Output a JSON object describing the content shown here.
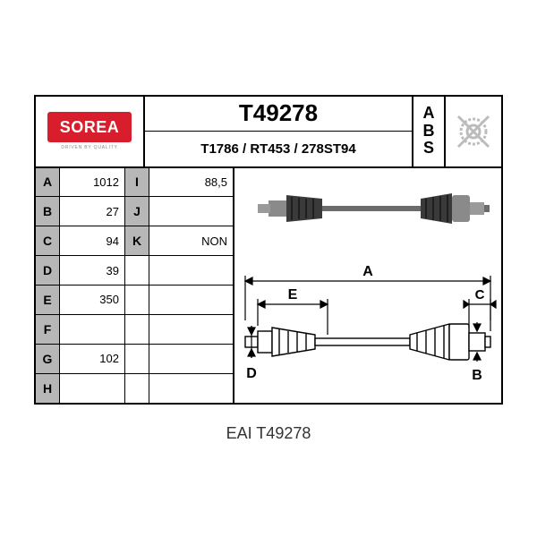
{
  "brand": {
    "name": "SOREA",
    "tagline": "DRIVEN BY QUALITY"
  },
  "part": {
    "number": "T49278",
    "alt_refs": "T1786 / RT453 / 278ST94"
  },
  "abs_label": "ABS",
  "specs": {
    "left": [
      {
        "key": "A",
        "val": "1012"
      },
      {
        "key": "B",
        "val": "27"
      },
      {
        "key": "C",
        "val": "94"
      },
      {
        "key": "D",
        "val": "39"
      },
      {
        "key": "E",
        "val": "350"
      },
      {
        "key": "F",
        "val": ""
      },
      {
        "key": "G",
        "val": "102"
      },
      {
        "key": "H",
        "val": ""
      }
    ],
    "right": [
      {
        "key": "I",
        "val": "88,5"
      },
      {
        "key": "J",
        "val": ""
      },
      {
        "key": "K",
        "val": "NON"
      },
      {
        "key": "",
        "val": ""
      },
      {
        "key": "",
        "val": ""
      },
      {
        "key": "",
        "val": ""
      },
      {
        "key": "",
        "val": ""
      },
      {
        "key": "",
        "val": ""
      }
    ]
  },
  "dim_labels": {
    "A": "A",
    "B": "B",
    "C": "C",
    "D": "D",
    "E": "E"
  },
  "caption": "EAI T49278",
  "colors": {
    "brand_red": "#d81e2c",
    "head_gray": "#b7b7b7",
    "line": "#000000",
    "diagram_gray": "#9a9a9a",
    "diagram_dark": "#6b6b6b"
  }
}
